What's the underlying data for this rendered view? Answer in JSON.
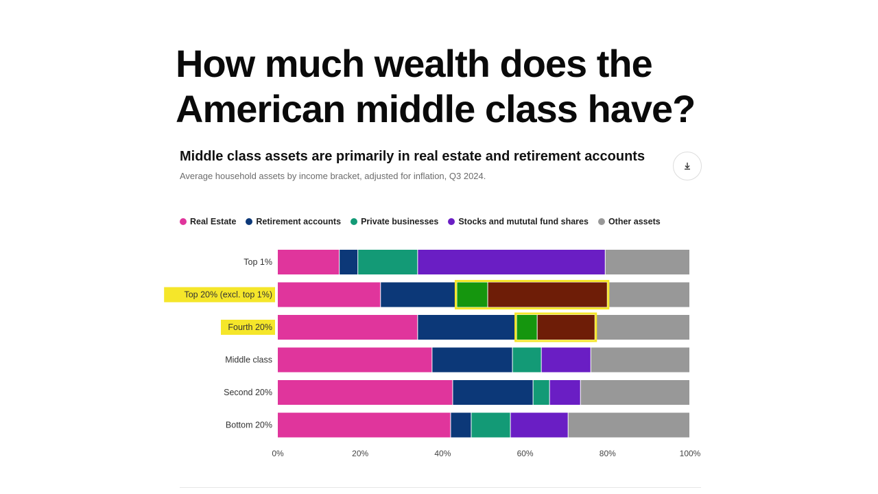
{
  "headline": {
    "line1": "How much wealth does the",
    "line2": "American middle class have?"
  },
  "chart_title": "Middle class assets are primarily in real estate and retirement accounts",
  "chart_subtitle": "Average household assets by income bracket, adjusted for inflation, Q3 2024.",
  "download_icon": "download-icon",
  "colors": {
    "real_estate": "#e0359c",
    "retirement": "#0c3878",
    "private_business": "#139a76",
    "stocks": "#6a1ec4",
    "other": "#989898",
    "highlight_yellow": "#f5e62a",
    "highlight_green": "#15960e",
    "highlight_brown": "#6e1d07"
  },
  "chart_data": {
    "type": "bar",
    "orientation": "horizontal",
    "stacked": true,
    "categories": [
      "Top 1%",
      "Top 20% (excl. top 1%)",
      "Fourth 20%",
      "Middle class",
      "Second 20%",
      "Bottom 20%"
    ],
    "highlighted_categories": [
      "Top 20% (excl. top 1%)",
      "Fourth 20%"
    ],
    "series": [
      {
        "name": "Real Estate",
        "values": [
          15,
          25,
          34,
          37.5,
          42.5,
          42
        ]
      },
      {
        "name": "Retirement accounts",
        "values": [
          4.5,
          18.5,
          24,
          19.5,
          19.5,
          5
        ]
      },
      {
        "name": "Private businesses",
        "values": [
          14.5,
          7.5,
          5,
          7,
          4,
          9.5
        ]
      },
      {
        "name": "Stocks and mututal fund shares",
        "values": [
          45.5,
          29,
          14,
          12,
          7.5,
          14
        ]
      },
      {
        "name": "Other assets",
        "values": [
          20.5,
          20,
          23,
          24,
          26.5,
          29.5
        ]
      }
    ],
    "xlim": [
      0,
      100
    ],
    "xticks": [
      "0%",
      "20%",
      "40%",
      "60%",
      "80%",
      "100%"
    ],
    "legend_position": "top-left",
    "grid": false
  }
}
